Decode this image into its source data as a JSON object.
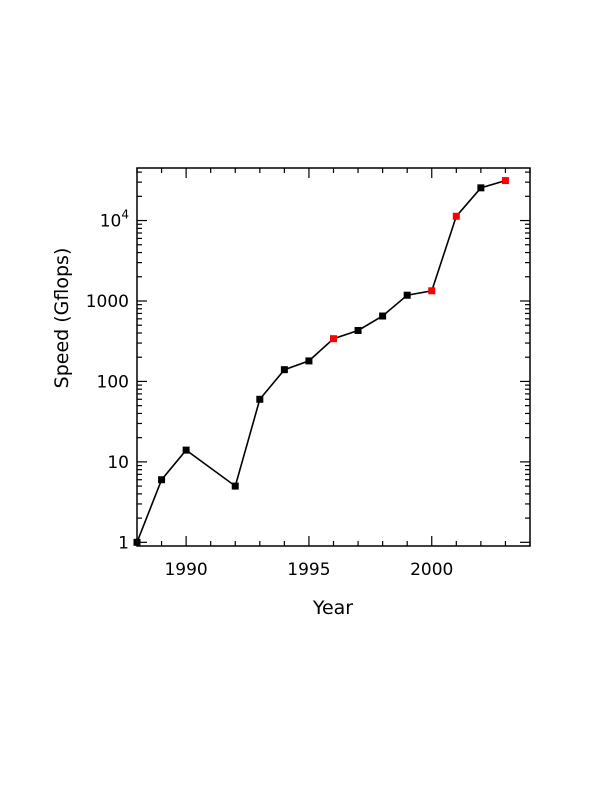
{
  "chart_data": {
    "type": "line",
    "title": "",
    "xlabel": "Year",
    "ylabel": "Speed (Gflops)",
    "xlim": [
      1988,
      2004
    ],
    "ylim": [
      0.9,
      45000
    ],
    "yscale": "log",
    "grid": false,
    "x_ticks": [
      {
        "value": 1990,
        "label": "1990"
      },
      {
        "value": 1995,
        "label": "1995"
      },
      {
        "value": 2000,
        "label": "2000"
      }
    ],
    "y_ticks": [
      {
        "value": 1,
        "label": "1"
      },
      {
        "value": 10,
        "label": "10"
      },
      {
        "value": 100,
        "label": "100"
      },
      {
        "value": 1000,
        "label": "1000"
      },
      {
        "value": 10000,
        "label_base": "10",
        "label_exp": "4"
      }
    ],
    "series": [
      {
        "line_color": "#000000",
        "points": [
          {
            "x": 1988,
            "y": 1,
            "color": "#000000"
          },
          {
            "x": 1989,
            "y": 6,
            "color": "#000000"
          },
          {
            "x": 1990,
            "y": 14,
            "color": "#000000"
          },
          {
            "x": 1992,
            "y": 5,
            "color": "#000000"
          },
          {
            "x": 1993,
            "y": 60,
            "color": "#000000"
          },
          {
            "x": 1994,
            "y": 140,
            "color": "#000000"
          },
          {
            "x": 1995,
            "y": 180,
            "color": "#000000"
          },
          {
            "x": 1996,
            "y": 340,
            "color": "#ff0000"
          },
          {
            "x": 1997,
            "y": 430,
            "color": "#000000"
          },
          {
            "x": 1998,
            "y": 650,
            "color": "#000000"
          },
          {
            "x": 1999,
            "y": 1180,
            "color": "#000000"
          },
          {
            "x": 2000,
            "y": 1340,
            "color": "#ff0000"
          },
          {
            "x": 2001,
            "y": 11300,
            "color": "#ff0000"
          },
          {
            "x": 2002,
            "y": 25500,
            "color": "#000000"
          },
          {
            "x": 2003,
            "y": 31400,
            "color": "#ff0000"
          }
        ]
      }
    ]
  }
}
